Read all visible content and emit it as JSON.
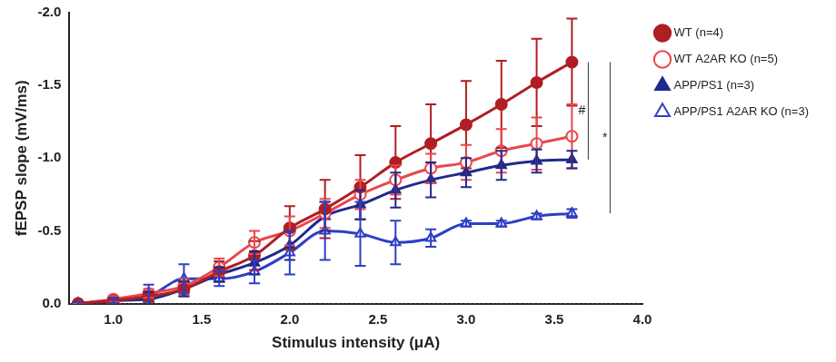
{
  "chart_data": {
    "type": "line",
    "x_label": "Stimulus intensity (μA)",
    "y_label": "fEPSP slope (mV/ms)",
    "x": [
      0.8,
      1.0,
      1.2,
      1.4,
      1.6,
      1.8,
      2.0,
      2.2,
      2.4,
      2.6,
      2.8,
      3.0,
      3.2,
      3.4,
      3.6
    ],
    "xlim": [
      0.75,
      4.0
    ],
    "xticks": [
      {
        "value": 1,
        "label": "1.0"
      },
      {
        "value": 1.5,
        "label": "1.5"
      },
      {
        "value": 2,
        "label": "2.0"
      },
      {
        "value": 2.5,
        "label": "2.5"
      },
      {
        "value": 3,
        "label": "3.0"
      },
      {
        "value": 3.5,
        "label": "3.5"
      },
      {
        "value": 4,
        "label": "4.0"
      }
    ],
    "ylim": [
      0,
      -2
    ],
    "yticks": [
      {
        "value": -2,
        "label": "-2.0"
      },
      {
        "value": -1.5,
        "label": "-1.5"
      },
      {
        "value": -1,
        "label": "-1.0"
      },
      {
        "value": -0.5,
        "label": "-0.5"
      },
      {
        "value": 0,
        "label": "0.0"
      }
    ],
    "grid": false,
    "legend": "right",
    "series": [
      {
        "name": "WT (n=4)",
        "color": "#b01e23",
        "marker": "circle",
        "line_style": "solid",
        "values": [
          0,
          -0.02,
          -0.05,
          -0.1,
          -0.22,
          -0.33,
          -0.52,
          -0.65,
          -0.8,
          -0.97,
          -1.1,
          -1.23,
          -1.37,
          -1.52,
          -1.66
        ],
        "errors": [
          0.01,
          0.02,
          0.03,
          0.05,
          0.07,
          0.1,
          0.15,
          0.2,
          0.22,
          0.25,
          0.27,
          0.3,
          0.3,
          0.3,
          0.3
        ]
      },
      {
        "name": "WT A2AR KO (n=5)",
        "color": "#e8474c",
        "marker": "open_circle",
        "line_style": "solid",
        "values": [
          0,
          -0.03,
          -0.07,
          -0.12,
          -0.25,
          -0.42,
          -0.5,
          -0.62,
          -0.75,
          -0.85,
          -0.93,
          -0.97,
          -1.05,
          -1.1,
          -1.15
        ],
        "errors": [
          0.01,
          0.02,
          0.03,
          0.05,
          0.06,
          0.08,
          0.1,
          0.1,
          0.1,
          0.1,
          0.1,
          0.12,
          0.15,
          0.18,
          0.22
        ]
      },
      {
        "name": "APP/PS1 (n=3)",
        "color": "#1f2a8c",
        "marker": "triangle",
        "line_style": "solid",
        "values": [
          0,
          -0.02,
          -0.03,
          -0.1,
          -0.2,
          -0.28,
          -0.4,
          -0.6,
          -0.68,
          -0.78,
          -0.85,
          -0.9,
          -0.95,
          -0.98,
          -0.99
        ],
        "errors": [
          0.01,
          0.02,
          0.05,
          0.05,
          0.05,
          0.08,
          0.1,
          0.1,
          0.1,
          0.12,
          0.12,
          0.1,
          0.1,
          0.08,
          0.06
        ]
      },
      {
        "name": "APP/PS1 A2AR KO (n=3)",
        "color": "#2d3fc4",
        "marker": "open_triangle",
        "line_style": "solid",
        "values": [
          0,
          -0.02,
          -0.05,
          -0.17,
          -0.17,
          -0.22,
          -0.35,
          -0.5,
          -0.48,
          -0.42,
          -0.45,
          -0.55,
          -0.55,
          -0.6,
          -0.62
        ],
        "errors": [
          0.01,
          0.02,
          0.08,
          0.1,
          0.05,
          0.08,
          0.15,
          0.2,
          0.22,
          0.15,
          0.06,
          0.02,
          0.02,
          0.02,
          0.03
        ]
      }
    ],
    "annotations": [
      {
        "text": "#",
        "series": [
          "WT (n=4)",
          "APP/PS1 (n=3)"
        ]
      },
      {
        "text": "*",
        "series": [
          "WT (n=4)",
          "APP/PS1 A2AR KO (n=3)"
        ]
      }
    ]
  }
}
